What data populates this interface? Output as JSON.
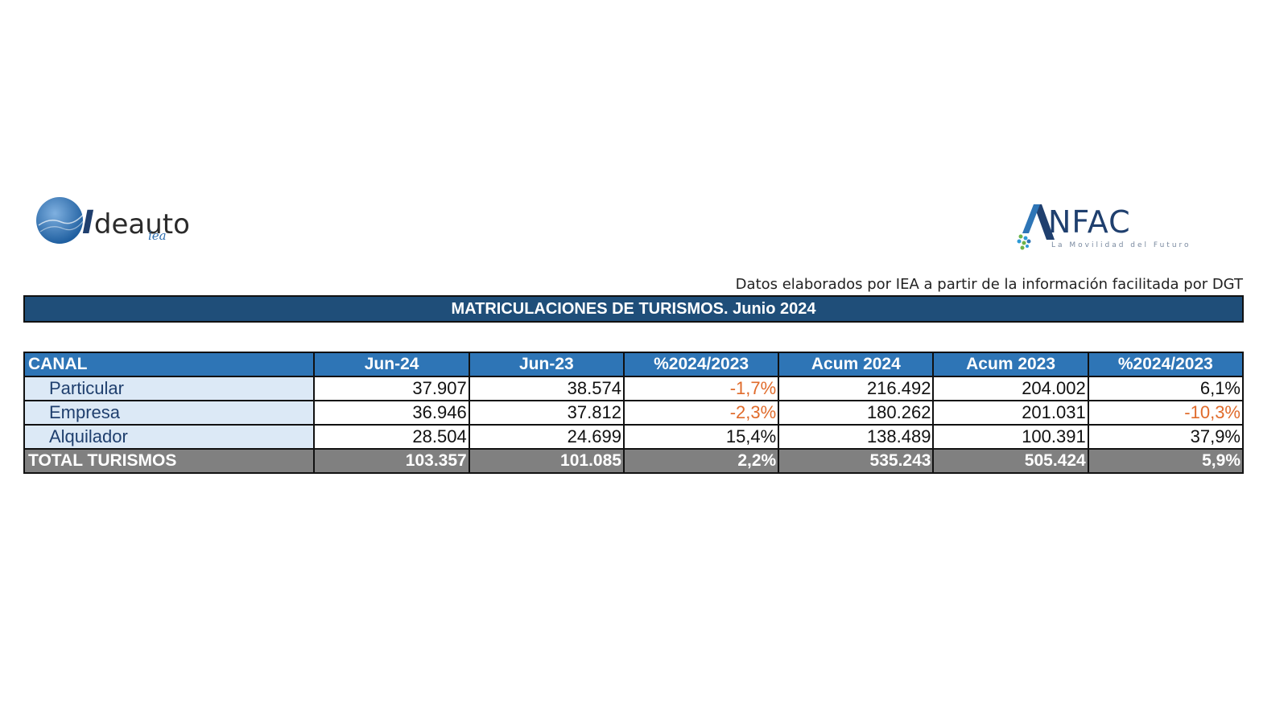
{
  "logos": {
    "left": {
      "text": "deauto",
      "initial": "I",
      "sub": "iea"
    },
    "right": {
      "text": "NFAC",
      "initial": "A",
      "tagline": "La Movilidad del Futuro"
    }
  },
  "source_note": "Datos elaborados por IEA a partir de la información facilitada por DGT",
  "title": "MATRICULACIONES DE TURISMOS. Junio 2024",
  "table": {
    "headers": [
      "CANAL",
      "Jun-24",
      "Jun-23",
      "%2024/2023",
      "Acum 2024",
      "Acum 2023",
      "%2024/2023"
    ],
    "rows": [
      {
        "canal": "Particular",
        "jun24": "37.907",
        "jun23": "38.574",
        "pct_month": "-1,7%",
        "acum24": "216.492",
        "acum23": "204.002",
        "pct_acum": "6,1%"
      },
      {
        "canal": "Empresa",
        "jun24": "36.946",
        "jun23": "37.812",
        "pct_month": "-2,3%",
        "acum24": "180.262",
        "acum23": "201.031",
        "pct_acum": "-10,3%"
      },
      {
        "canal": "Alquilador",
        "jun24": "28.504",
        "jun23": "24.699",
        "pct_month": "15,4%",
        "acum24": "138.489",
        "acum23": "100.391",
        "pct_acum": "37,9%"
      }
    ],
    "total": {
      "canal": "TOTAL TURISMOS",
      "jun24": "103.357",
      "jun23": "101.085",
      "pct_month": "2,2%",
      "acum24": "535.243",
      "acum23": "505.424",
      "pct_acum": "5,9%"
    }
  },
  "colors": {
    "header_bg": "#2e75b6",
    "title_bg": "#1f4e79",
    "label_bg": "#dce9f6",
    "total_bg": "#808080",
    "negative": "#e06b2b"
  }
}
